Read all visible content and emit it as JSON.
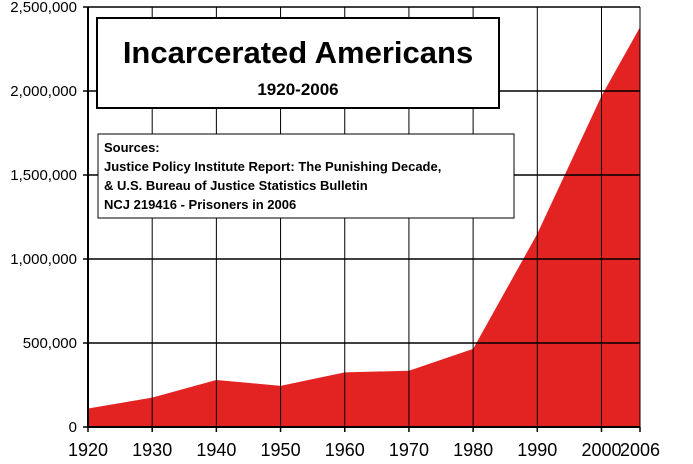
{
  "chart_data": {
    "type": "area",
    "title": "Incarcerated Americans",
    "subtitle": "1920-2006",
    "sources": [
      "Sources:",
      "Justice Policy Institute Report: The Punishing Decade,",
      "& U.S. Bureau of Justice Statistics Bulletin",
      "NCJ 219416 - Prisoners in 2006"
    ],
    "x": [
      1920,
      1930,
      1940,
      1950,
      1960,
      1970,
      1980,
      1990,
      2000,
      2006
    ],
    "values": [
      110000,
      175000,
      280000,
      245000,
      325000,
      335000,
      465000,
      1150000,
      1970000,
      2380000
    ],
    "xticks": [
      "1920",
      "1930",
      "1940",
      "1950",
      "1960",
      "1970",
      "1980",
      "1990",
      "2000",
      "2006"
    ],
    "yticks": [
      "0",
      "500,000",
      "1,000,000",
      "1,500,000",
      "2,000,000",
      "2,500,000"
    ],
    "ytick_values": [
      0,
      500000,
      1000000,
      1500000,
      2000000,
      2500000
    ],
    "ylim": [
      0,
      2500000
    ],
    "xlim": [
      1920,
      2006
    ],
    "fill_color": "#e32222",
    "grid": true
  }
}
